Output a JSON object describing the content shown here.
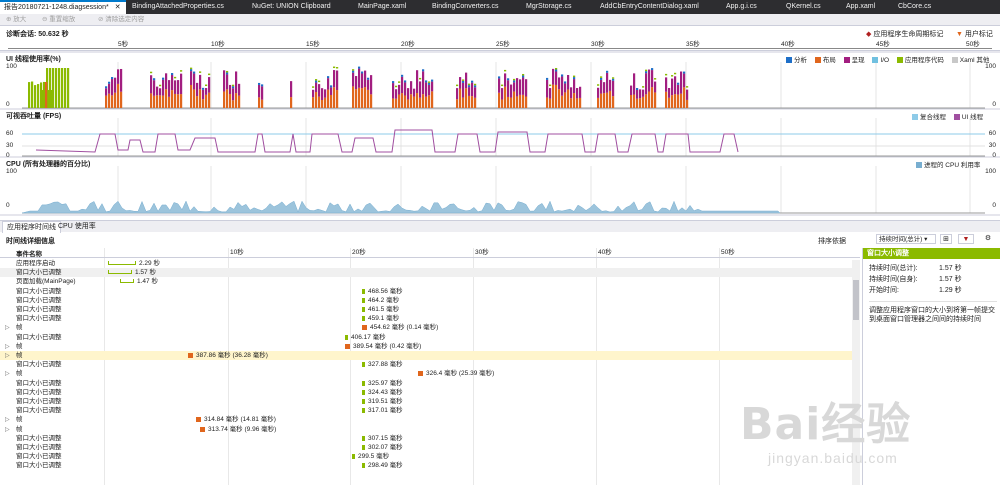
{
  "tabs": [
    {
      "label": "报告20180721-1248.diagsession*",
      "active": true
    },
    {
      "label": "BindingAttachedProperties.cs"
    },
    {
      "label": "NuGet: UNION Clipboard"
    },
    {
      "label": "MainPage.xaml"
    },
    {
      "label": "BindingConverters.cs"
    },
    {
      "label": "MgrStorage.cs"
    },
    {
      "label": "AddCbEntryContentDialog.xaml"
    },
    {
      "label": "App.g.i.cs"
    },
    {
      "label": "QKernel.cs"
    },
    {
      "label": "App.xaml"
    },
    {
      "label": "CbCore.cs"
    }
  ],
  "toolbar": {
    "zoom_in": "放大",
    "reset_zoom": "重置缩放",
    "clear_selection": "清除选定内容"
  },
  "session": {
    "label": "诊断会话: 50.632 秒",
    "legend_lifecycle": "应用程序生命周期标记",
    "legend_user": "用户标记",
    "ticks": [
      "5秒",
      "10秒",
      "15秒",
      "20秒",
      "25秒",
      "30秒",
      "35秒",
      "40秒",
      "45秒",
      "50秒"
    ]
  },
  "ui_panel": {
    "title": "UI 线程使用率(%)",
    "y_top": "100",
    "y_bottom": "0",
    "legend": [
      {
        "label": "分析",
        "color": "#1e6fc8"
      },
      {
        "label": "布局",
        "color": "#e0661d"
      },
      {
        "label": "呈现",
        "color": "#a21e80"
      },
      {
        "label": "I/O",
        "color": "#70c0e0"
      },
      {
        "label": "应用程序代码",
        "color": "#8bba00"
      },
      {
        "label": "Xaml 其他",
        "color": "#c8c8c8"
      }
    ]
  },
  "fps_panel": {
    "title": "可视吞吐量 (FPS)",
    "y_labels": [
      "60",
      "30",
      "0"
    ],
    "legend": [
      {
        "label": "复合线程",
        "color": "#8ecbe8"
      },
      {
        "label": "UI 线程",
        "color": "#a04fa0"
      }
    ]
  },
  "cpu_panel": {
    "title": "CPU (所有处理器的百分比)",
    "y_top": "100",
    "y_bottom": "0",
    "legend": [
      {
        "label": "进程的 CPU 利用率",
        "color": "#78aed0"
      }
    ]
  },
  "bottom_tabs": [
    "应用程序时间线",
    "CPU 使用率"
  ],
  "timeline": {
    "title": "时间线详细信息",
    "sort_label": "排序依据",
    "sort_value": "持续时间(总计)",
    "column_header": "事件名称",
    "ticks": [
      "10秒",
      "20秒",
      "30秒",
      "40秒",
      "50秒"
    ],
    "rows": [
      {
        "name": "应用程序启动",
        "label": "2.29 秒",
        "kind": "bracket"
      },
      {
        "name": "窗口大小已调整",
        "label": "1.57 秒",
        "kind": "bracket",
        "hl": true
      },
      {
        "name": "页面加载(MainPage)",
        "label": "1.47 秒",
        "kind": "bracket"
      },
      {
        "name": "窗口大小已调整",
        "label": "468.56 毫秒",
        "kind": "green"
      },
      {
        "name": "窗口大小已调整",
        "label": "464.2 毫秒",
        "kind": "green"
      },
      {
        "name": "窗口大小已调整",
        "label": "461.5 毫秒",
        "kind": "green"
      },
      {
        "name": "窗口大小已调整",
        "label": "459.1 毫秒",
        "kind": "green"
      },
      {
        "name": "帧",
        "label": "454.62 毫秒 (0.14 毫秒)",
        "kind": "orange",
        "exp": true
      },
      {
        "name": "窗口大小已调整",
        "label": "406.17 毫秒",
        "kind": "green"
      },
      {
        "name": "帧",
        "label": "389.54 毫秒 (0.42 毫秒)",
        "kind": "orange",
        "exp": true
      },
      {
        "name": "帧",
        "label": "387.86 毫秒 (36.28 毫秒)",
        "kind": "orange",
        "exp": true,
        "sel": true
      },
      {
        "name": "窗口大小已调整",
        "label": "327.88 毫秒",
        "kind": "green"
      },
      {
        "name": "帧",
        "label": "326.4 毫秒 (25.39 毫秒)",
        "kind": "orange",
        "exp": true
      },
      {
        "name": "窗口大小已调整",
        "label": "325.97 毫秒",
        "kind": "green"
      },
      {
        "name": "窗口大小已调整",
        "label": "324.43 毫秒",
        "kind": "green"
      },
      {
        "name": "窗口大小已调整",
        "label": "319.51 毫秒",
        "kind": "green"
      },
      {
        "name": "窗口大小已调整",
        "label": "317.01 毫秒",
        "kind": "green"
      },
      {
        "name": "帧",
        "label": "314.84 毫秒 (14.81 毫秒)",
        "kind": "orange",
        "exp": true
      },
      {
        "name": "帧",
        "label": "313.74 毫秒 (9.96 毫秒)",
        "kind": "orange",
        "exp": true
      },
      {
        "name": "窗口大小已调整",
        "label": "307.15 毫秒",
        "kind": "green"
      },
      {
        "name": "窗口大小已调整",
        "label": "302.07 毫秒",
        "kind": "green"
      },
      {
        "name": "窗口大小已调整",
        "label": "299.5 毫秒",
        "kind": "green"
      },
      {
        "name": "窗口大小已调整",
        "label": "298.49 毫秒",
        "kind": "green"
      }
    ]
  },
  "detail": {
    "header": "窗口大小调整",
    "fields": [
      {
        "key": "持续时间(总计):",
        "value": "1.57 秒"
      },
      {
        "key": "持续时间(自身):",
        "value": "1.57 秒"
      },
      {
        "key": "开始时间:",
        "value": "1.29 秒"
      }
    ],
    "description": "调整应用程序窗口的大小到将第一帧提交到桌面窗口管理器之间间的持续时间"
  },
  "watermark": {
    "brand": "Bai经验",
    "url": "jingyan.baidu.com"
  }
}
